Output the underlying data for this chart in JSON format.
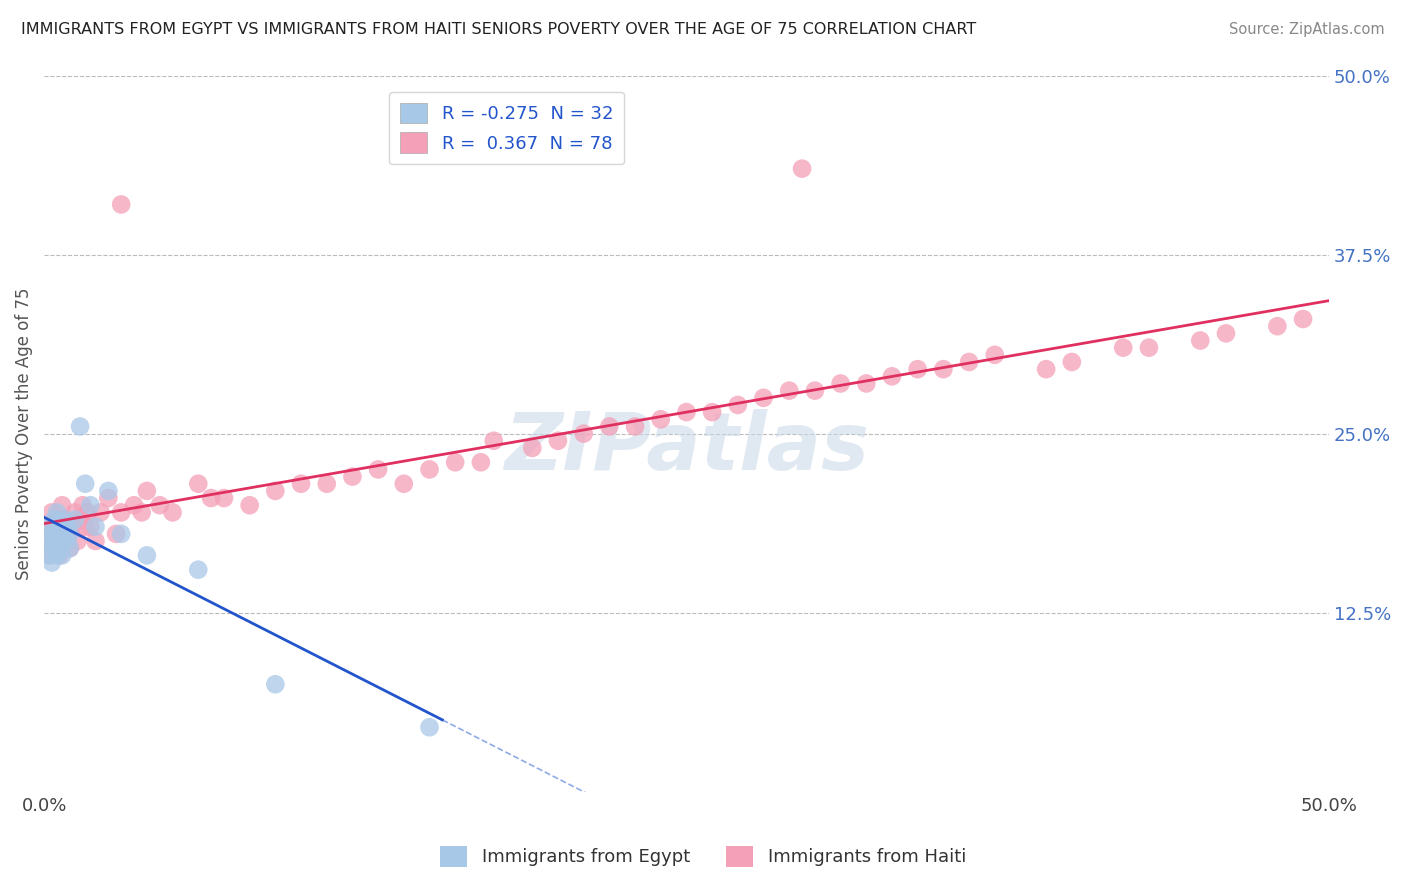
{
  "title": "IMMIGRANTS FROM EGYPT VS IMMIGRANTS FROM HAITI SENIORS POVERTY OVER THE AGE OF 75 CORRELATION CHART",
  "source": "Source: ZipAtlas.com",
  "ylabel": "Seniors Poverty Over the Age of 75",
  "xlim": [
    0.0,
    0.5
  ],
  "ylim": [
    0.0,
    0.5
  ],
  "ytick_labels": [
    "12.5%",
    "25.0%",
    "37.5%",
    "50.0%"
  ],
  "ytick_positions": [
    0.125,
    0.25,
    0.375,
    0.5
  ],
  "egypt_color": "#a8c8e8",
  "haiti_color": "#f4a0b8",
  "egypt_line_color": "#2255cc",
  "haiti_line_color": "#e03060",
  "egypt_R": -0.275,
  "egypt_N": 32,
  "haiti_R": 0.367,
  "haiti_N": 78,
  "legend_label_egypt": "Immigrants from Egypt",
  "legend_label_haiti": "Immigrants from Haiti",
  "watermark": "ZIPatlas",
  "egypt_x": [
    0.001,
    0.002,
    0.002,
    0.003,
    0.003,
    0.003,
    0.004,
    0.004,
    0.005,
    0.005,
    0.005,
    0.006,
    0.006,
    0.007,
    0.007,
    0.008,
    0.008,
    0.009,
    0.009,
    0.01,
    0.01,
    0.012,
    0.014,
    0.016,
    0.018,
    0.02,
    0.025,
    0.03,
    0.04,
    0.06,
    0.09,
    0.15
  ],
  "egypt_y": [
    0.175,
    0.165,
    0.185,
    0.17,
    0.18,
    0.16,
    0.175,
    0.19,
    0.165,
    0.18,
    0.195,
    0.17,
    0.185,
    0.175,
    0.165,
    0.18,
    0.19,
    0.175,
    0.185,
    0.17,
    0.18,
    0.19,
    0.255,
    0.215,
    0.2,
    0.185,
    0.21,
    0.18,
    0.165,
    0.155,
    0.075,
    0.045
  ],
  "haiti_x": [
    0.001,
    0.002,
    0.002,
    0.003,
    0.003,
    0.004,
    0.004,
    0.005,
    0.005,
    0.006,
    0.006,
    0.007,
    0.007,
    0.008,
    0.008,
    0.009,
    0.01,
    0.011,
    0.012,
    0.013,
    0.014,
    0.015,
    0.016,
    0.017,
    0.018,
    0.02,
    0.022,
    0.025,
    0.028,
    0.03,
    0.035,
    0.038,
    0.04,
    0.045,
    0.05,
    0.06,
    0.065,
    0.07,
    0.08,
    0.09,
    0.1,
    0.11,
    0.12,
    0.13,
    0.14,
    0.15,
    0.16,
    0.17,
    0.175,
    0.19,
    0.2,
    0.21,
    0.22,
    0.23,
    0.24,
    0.25,
    0.26,
    0.27,
    0.28,
    0.29,
    0.3,
    0.31,
    0.32,
    0.33,
    0.34,
    0.35,
    0.36,
    0.37,
    0.39,
    0.4,
    0.42,
    0.43,
    0.45,
    0.46,
    0.48,
    0.49,
    0.295,
    0.03
  ],
  "haiti_y": [
    0.175,
    0.185,
    0.165,
    0.18,
    0.195,
    0.17,
    0.185,
    0.175,
    0.19,
    0.165,
    0.18,
    0.2,
    0.185,
    0.175,
    0.19,
    0.18,
    0.17,
    0.185,
    0.195,
    0.175,
    0.19,
    0.2,
    0.185,
    0.195,
    0.185,
    0.175,
    0.195,
    0.205,
    0.18,
    0.195,
    0.2,
    0.195,
    0.21,
    0.2,
    0.195,
    0.215,
    0.205,
    0.205,
    0.2,
    0.21,
    0.215,
    0.215,
    0.22,
    0.225,
    0.215,
    0.225,
    0.23,
    0.23,
    0.245,
    0.24,
    0.245,
    0.25,
    0.255,
    0.255,
    0.26,
    0.265,
    0.265,
    0.27,
    0.275,
    0.28,
    0.28,
    0.285,
    0.285,
    0.29,
    0.295,
    0.295,
    0.3,
    0.305,
    0.295,
    0.3,
    0.31,
    0.31,
    0.315,
    0.32,
    0.325,
    0.33,
    0.435,
    0.41
  ]
}
